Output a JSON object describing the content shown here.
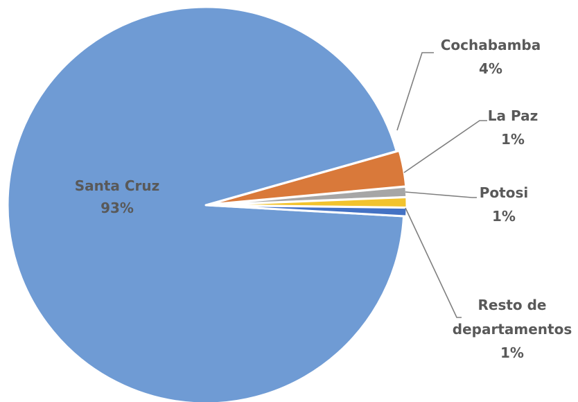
{
  "chart_data": {
    "type": "pie",
    "slices": [
      {
        "name": "Santa Cruz",
        "value": 93,
        "pct_label": "93%",
        "color": "#6f9bd4"
      },
      {
        "name": "Cochabamba",
        "value": 4,
        "pct_label": "4%",
        "color": "#d9793a"
      },
      {
        "name": "La Paz",
        "value": 1,
        "pct_label": "1%",
        "color": "#a6a6a6"
      },
      {
        "name": "Potosi",
        "value": 1,
        "pct_label": "1%",
        "color": "#f2c32e"
      },
      {
        "name": "Resto de departamentos",
        "name_lines": [
          "Resto de",
          "departamentos"
        ],
        "value": 1,
        "pct_label": "1%",
        "color": "#4472c4"
      }
    ],
    "label_positions": [
      "inside",
      "outside-leader",
      "outside-leader",
      "outside-leader",
      "outside-leader"
    ],
    "legend": "none",
    "title": ""
  }
}
